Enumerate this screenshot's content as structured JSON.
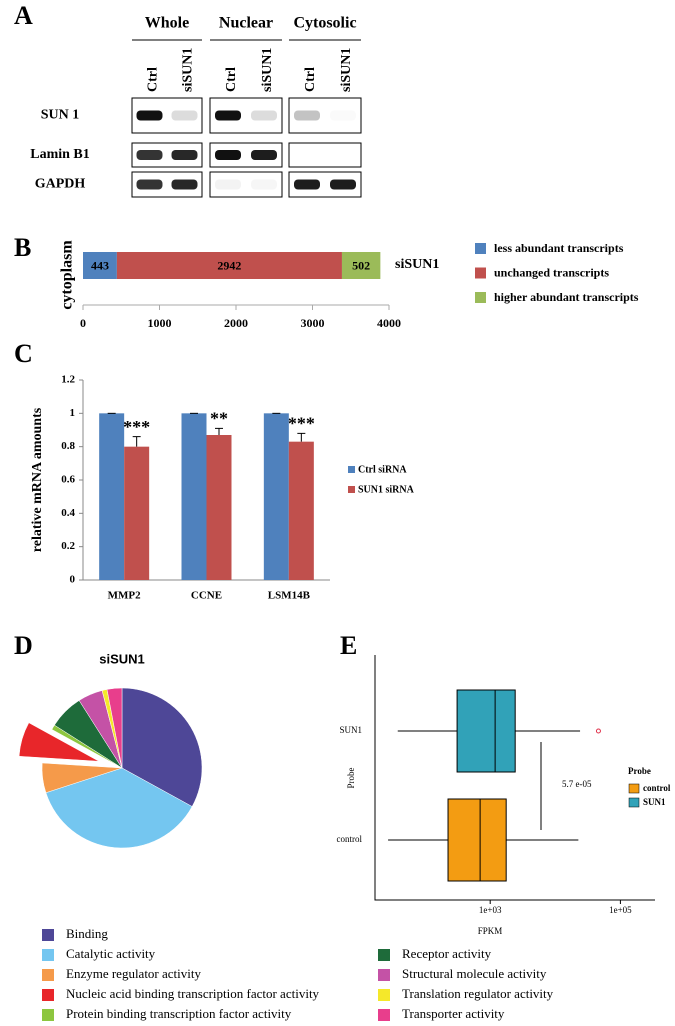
{
  "blot": {
    "label": "A",
    "fractions": [
      "Whole",
      "Nuclear",
      "Cytosolic"
    ],
    "lanes": [
      "Ctrl",
      "siSUN1"
    ],
    "proteins": [
      "SUN 1",
      "Lamin B1",
      "GAPDH"
    ]
  },
  "chart_data": [
    {
      "type": "stacked-bar",
      "label": "B",
      "categories": [
        "cytoplasm"
      ],
      "series_label": "siSUN1",
      "series": [
        {
          "name": "less abundant transcripts",
          "color": "#4f81bd",
          "values": [
            443
          ]
        },
        {
          "name": "unchanged transcripts",
          "color": "#c0504d",
          "values": [
            2942
          ]
        },
        {
          "name": "higher abundant transcripts",
          "color": "#9bbb59",
          "values": [
            502
          ]
        }
      ],
      "xlim": [
        0,
        4000
      ],
      "xticks": [
        0,
        1000,
        2000,
        3000,
        4000
      ]
    },
    {
      "type": "bar",
      "label": "C",
      "ylabel": "relative mRNA amounts",
      "categories": [
        "MMP2",
        "CCNE",
        "LSM14B"
      ],
      "series": [
        {
          "name": "Ctrl siRNA",
          "color": "#4f81bd",
          "values": [
            1,
            1,
            1
          ],
          "errors": [
            0,
            0,
            0
          ]
        },
        {
          "name": "SUN1 siRNA",
          "color": "#c0504d",
          "values": [
            0.8,
            0.87,
            0.83
          ],
          "errors": [
            0.06,
            0.04,
            0.05
          ],
          "annotations": [
            "***",
            "**",
            "***"
          ]
        }
      ],
      "ylim": [
        0,
        1.2
      ],
      "yticks": [
        0,
        0.2,
        0.4,
        0.6,
        0.8,
        1,
        1.2
      ]
    },
    {
      "type": "pie",
      "label": "D",
      "title": "siSUN1",
      "categories": [
        "Binding",
        "Catalytic activity",
        "Enzyme regulator activity",
        "Nucleic acid binding transcription factor activity",
        "Protein binding transcription factor activity",
        "Receptor activity",
        "Structural molecule activity",
        "Translation regulator activity",
        "Transporter activity"
      ],
      "values": [
        33,
        37,
        6,
        7,
        1,
        7,
        5,
        1,
        3
      ],
      "colors": [
        "#4e4797",
        "#74c6f0",
        "#f59a4a",
        "#e8262a",
        "#8dc63f",
        "#1e6b3a",
        "#c452a6",
        "#f5e82a",
        "#e83e8c"
      ],
      "explode": 3
    },
    {
      "type": "box",
      "label": "E",
      "xlabel": "FPKM",
      "ylabel": "Probe",
      "xscale": "log",
      "xlim": [
        17,
        340000
      ],
      "xticks": [
        {
          "value": 1000,
          "label": "1e+03"
        },
        {
          "value": 100000,
          "label": "1e+05"
        }
      ],
      "annotation": "5.7 e-05",
      "legend_title": "Probe",
      "series": [
        {
          "name": "control",
          "color": "#f39c12",
          "min": 27,
          "q1": 225,
          "median": 700,
          "q3": 1760,
          "max": 22600,
          "outliers": []
        },
        {
          "name": "SUN1",
          "color": "#31a2b8",
          "min": 38,
          "q1": 310,
          "median": 1190,
          "q3": 2420,
          "max": 24000,
          "outliers": [
            46000
          ]
        }
      ]
    }
  ]
}
